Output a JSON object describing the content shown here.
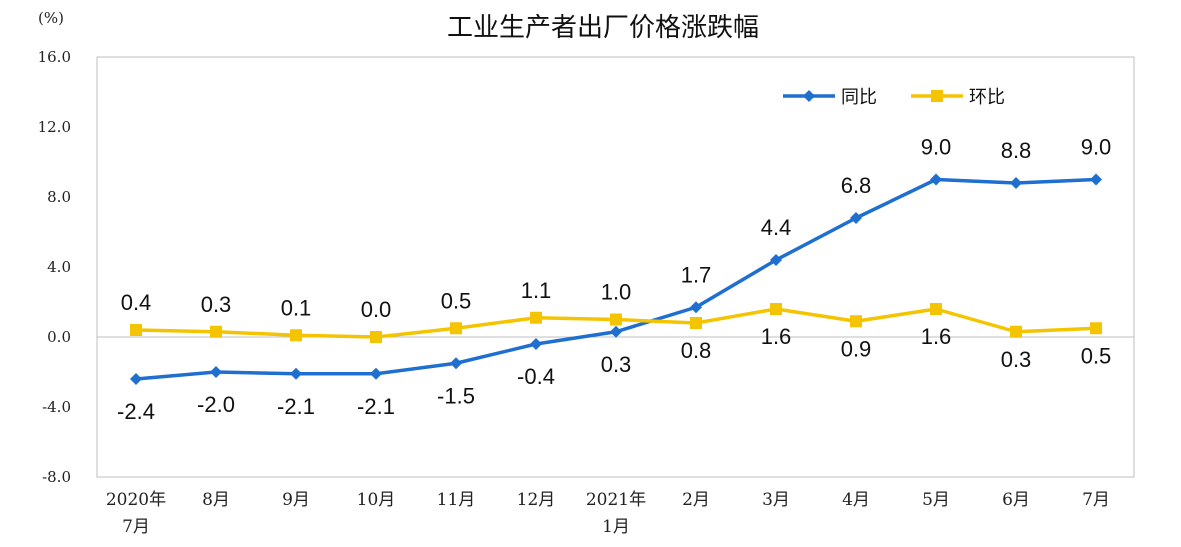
{
  "chart_data": {
    "type": "line",
    "title": "工业生产者出厂价格涨跌幅",
    "ylabel": "(%)",
    "xlabel": "",
    "ylim": [
      -8.0,
      16.0
    ],
    "yticks": [
      "16.0",
      "12.0",
      "8.0",
      "4.0",
      "0.0",
      "-4.0",
      "-8.0"
    ],
    "ytick_values": [
      16,
      12,
      8,
      4,
      0,
      -4,
      -8
    ],
    "categories": [
      [
        "2020年",
        "7月"
      ],
      [
        "8月"
      ],
      [
        "9月"
      ],
      [
        "10月"
      ],
      [
        "11月"
      ],
      [
        "12月"
      ],
      [
        "2021年",
        "1月"
      ],
      [
        "2月"
      ],
      [
        "3月"
      ],
      [
        "4月"
      ],
      [
        "5月"
      ],
      [
        "6月"
      ],
      [
        "7月"
      ]
    ],
    "grid": false,
    "legend_position": "top-right",
    "series": [
      {
        "name": "同比",
        "color": "#1F6FD0",
        "marker": "diamond",
        "values": [
          -2.4,
          -2.0,
          -2.1,
          -2.1,
          -1.5,
          -0.4,
          0.3,
          1.7,
          4.4,
          6.8,
          9.0,
          8.8,
          9.0
        ],
        "labels": [
          "-2.4",
          "-2.0",
          "-2.1",
          "-2.1",
          "-1.5",
          "-0.4",
          "0.3",
          "1.7",
          "4.4",
          "6.8",
          "9.0",
          "8.8",
          "9.0"
        ]
      },
      {
        "name": "环比",
        "color": "#F5C400",
        "marker": "square",
        "values": [
          0.4,
          0.3,
          0.1,
          0.0,
          0.5,
          1.1,
          1.0,
          0.8,
          1.6,
          0.9,
          1.6,
          0.3,
          0.5
        ],
        "labels": [
          "0.4",
          "0.3",
          "0.1",
          "0.0",
          "0.5",
          "1.1",
          "1.0",
          "0.8",
          "1.6",
          "0.9",
          "1.6",
          "0.3",
          "0.5"
        ]
      }
    ]
  }
}
